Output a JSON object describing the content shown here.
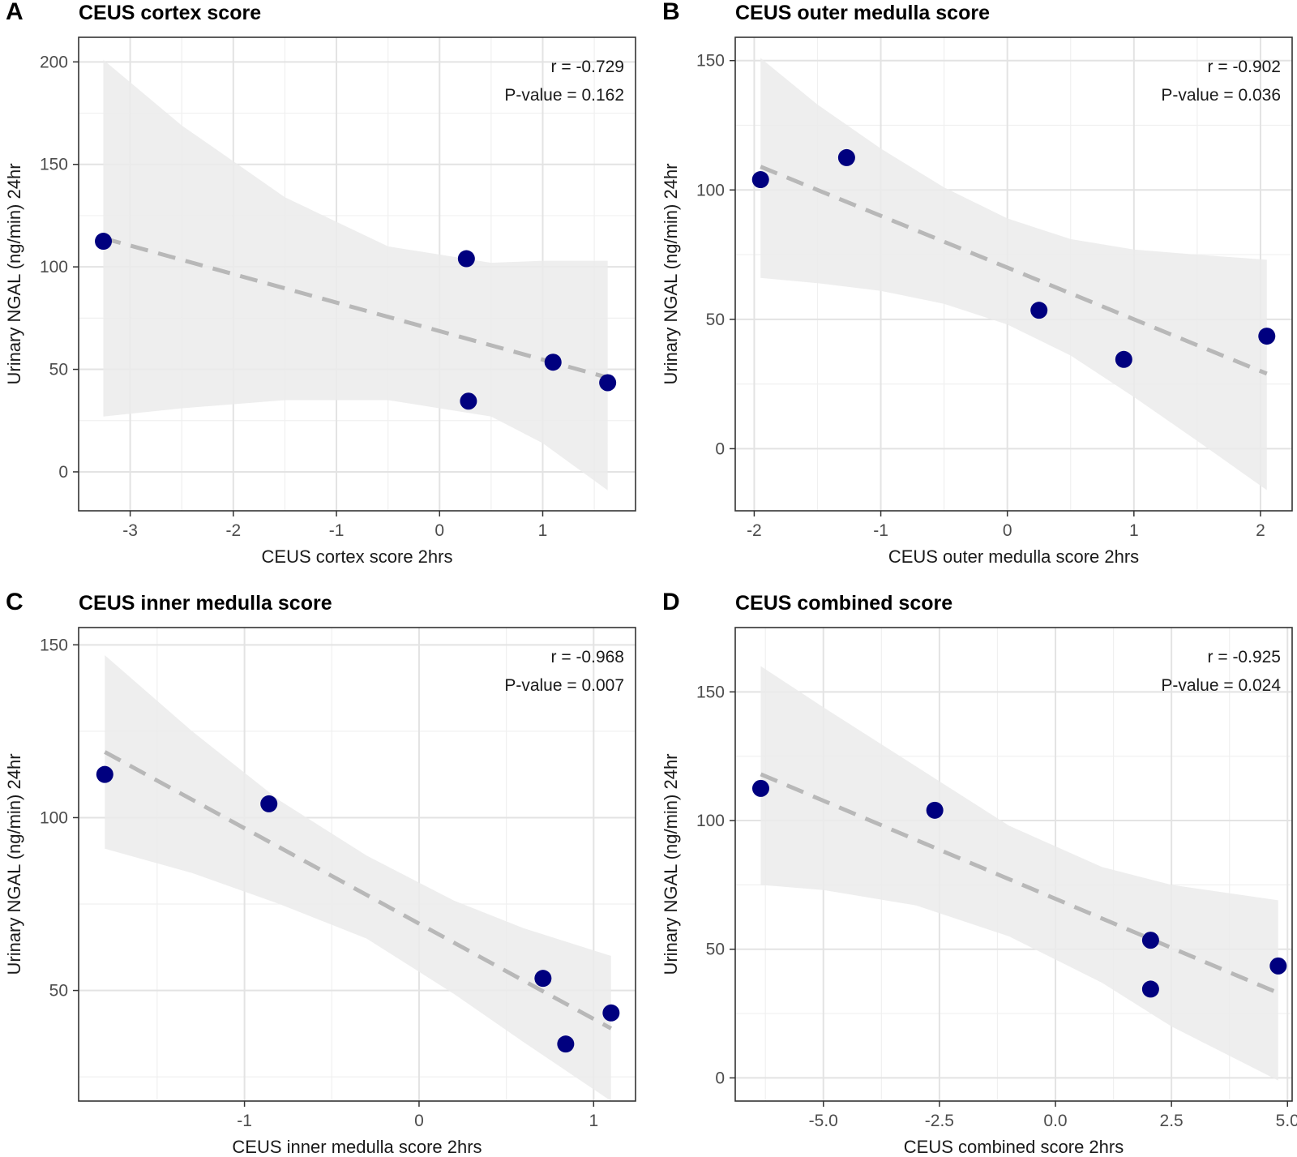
{
  "figure": {
    "point_color": "#00007F",
    "band_color": "#EBEBEB",
    "trend_color": "#B8B8B8"
  },
  "chart_data": [
    {
      "type": "scatter",
      "letter": "A",
      "title": "CEUS cortex score",
      "xlabel": "CEUS cortex score 2hrs",
      "ylabel": "Urinary NGAL (ng/min) 24hr",
      "xlim": [
        -3.5,
        1.9
      ],
      "ylim": [
        -19,
        212
      ],
      "xticks": [
        -3,
        -2,
        -1,
        0,
        1
      ],
      "xtick_labels": [
        "-3",
        "-2",
        "-1",
        "0",
        "1"
      ],
      "yticks": [
        0,
        50,
        100,
        150,
        200
      ],
      "ytick_labels": [
        "0",
        "50",
        "100",
        "150",
        "200"
      ],
      "points": [
        {
          "x": -3.26,
          "y": 112.5
        },
        {
          "x": 0.26,
          "y": 104
        },
        {
          "x": 0.28,
          "y": 34.5
        },
        {
          "x": 1.1,
          "y": 53.5
        },
        {
          "x": 1.63,
          "y": 43.5
        }
      ],
      "trend": {
        "x0": -3.26,
        "y0": 114,
        "x1": 1.63,
        "y1": 46
      },
      "band": {
        "x": [
          -3.26,
          -2.5,
          -1.5,
          -0.5,
          0.5,
          1.0,
          1.63
        ],
        "upper": [
          201,
          169,
          134,
          110,
          102,
          103,
          103
        ],
        "lower": [
          27,
          31,
          35,
          35,
          27,
          14,
          -9
        ]
      },
      "stats": {
        "r": "r = -0.729",
        "p": "P-value = 0.162"
      }
    },
    {
      "type": "scatter",
      "letter": "B",
      "title": "CEUS outer medulla score",
      "xlabel": "CEUS outer medulla score 2hrs",
      "ylabel": "Urinary NGAL (ng/min) 24hr",
      "xlim": [
        -2.15,
        2.25
      ],
      "ylim": [
        -24,
        159
      ],
      "xticks": [
        -2,
        -1,
        0,
        1,
        2
      ],
      "xtick_labels": [
        "-2",
        "-1",
        "0",
        "1",
        "2"
      ],
      "yticks": [
        0,
        50,
        100,
        150
      ],
      "ytick_labels": [
        "0",
        "50",
        "100",
        "150"
      ],
      "points": [
        {
          "x": -1.95,
          "y": 104
        },
        {
          "x": -1.27,
          "y": 112.5
        },
        {
          "x": 0.25,
          "y": 53.5
        },
        {
          "x": 0.92,
          "y": 34.5
        },
        {
          "x": 2.05,
          "y": 43.5
        }
      ],
      "trend": {
        "x0": -1.95,
        "y0": 109,
        "x1": 2.05,
        "y1": 29
      },
      "band": {
        "x": [
          -1.95,
          -1.5,
          -1.0,
          -0.5,
          0.0,
          0.5,
          1.0,
          1.5,
          2.05
        ],
        "upper": [
          151,
          133,
          116,
          101,
          89,
          81,
          77,
          75,
          73
        ],
        "lower": [
          66,
          64,
          61,
          56,
          48,
          36,
          20,
          3,
          -16
        ]
      },
      "stats": {
        "r": "r = -0.902",
        "p": "P-value = 0.036"
      }
    },
    {
      "type": "scatter",
      "letter": "C",
      "title": "CEUS inner medulla score",
      "xlabel": "CEUS inner medulla score 2hrs",
      "ylabel": "Urinary NGAL (ng/min) 24hr",
      "xlim": [
        -1.95,
        1.24
      ],
      "ylim": [
        18,
        155
      ],
      "xticks": [
        -1,
        0,
        1
      ],
      "xtick_labels": [
        "-1",
        "0",
        "1"
      ],
      "yticks": [
        50,
        100,
        150
      ],
      "ytick_labels": [
        "50",
        "100",
        "150"
      ],
      "points": [
        {
          "x": -1.8,
          "y": 112.5
        },
        {
          "x": -0.86,
          "y": 104
        },
        {
          "x": 0.71,
          "y": 53.5
        },
        {
          "x": 0.84,
          "y": 34.5
        },
        {
          "x": 1.1,
          "y": 43.5
        }
      ],
      "trend": {
        "x0": -1.8,
        "y0": 119,
        "x1": 1.1,
        "y1": 39
      },
      "band": {
        "x": [
          -1.8,
          -1.3,
          -0.8,
          -0.3,
          0.2,
          0.6,
          1.1
        ],
        "upper": [
          147,
          125,
          105,
          89,
          76,
          68,
          60
        ],
        "lower": [
          91,
          84,
          75,
          65,
          49,
          35,
          18
        ]
      },
      "stats": {
        "r": "r = -0.968",
        "p": "P-value = 0.007"
      }
    },
    {
      "type": "scatter",
      "letter": "D",
      "title": "CEUS combined score",
      "xlabel": "CEUS combined score 2hrs",
      "ylabel": "Urinary NGAL (ng/min) 24hr",
      "xlim": [
        -6.9,
        5.1
      ],
      "ylim": [
        -9,
        175
      ],
      "xticks": [
        -5,
        -2.5,
        0,
        2.5,
        5
      ],
      "xtick_labels": [
        "-5.0",
        "-2.5",
        "0.0",
        "2.5",
        "5.0"
      ],
      "yticks": [
        0,
        50,
        100,
        150
      ],
      "ytick_labels": [
        "0",
        "50",
        "100",
        "150"
      ],
      "points": [
        {
          "x": -6.35,
          "y": 112.5
        },
        {
          "x": -2.6,
          "y": 104
        },
        {
          "x": 2.05,
          "y": 53.5
        },
        {
          "x": 2.05,
          "y": 34.5
        },
        {
          "x": 4.8,
          "y": 43.5
        }
      ],
      "trend": {
        "x0": -6.35,
        "y0": 118,
        "x1": 4.8,
        "y1": 33
      },
      "band": {
        "x": [
          -6.35,
          -5,
          -3,
          -1,
          1,
          2.5,
          4.8
        ],
        "upper": [
          160,
          144,
          121,
          98,
          82,
          75,
          69
        ],
        "lower": [
          75,
          73,
          67,
          55,
          37,
          20,
          -1
        ]
      },
      "stats": {
        "r": "r = -0.925",
        "p": "P-value = 0.024"
      }
    }
  ]
}
